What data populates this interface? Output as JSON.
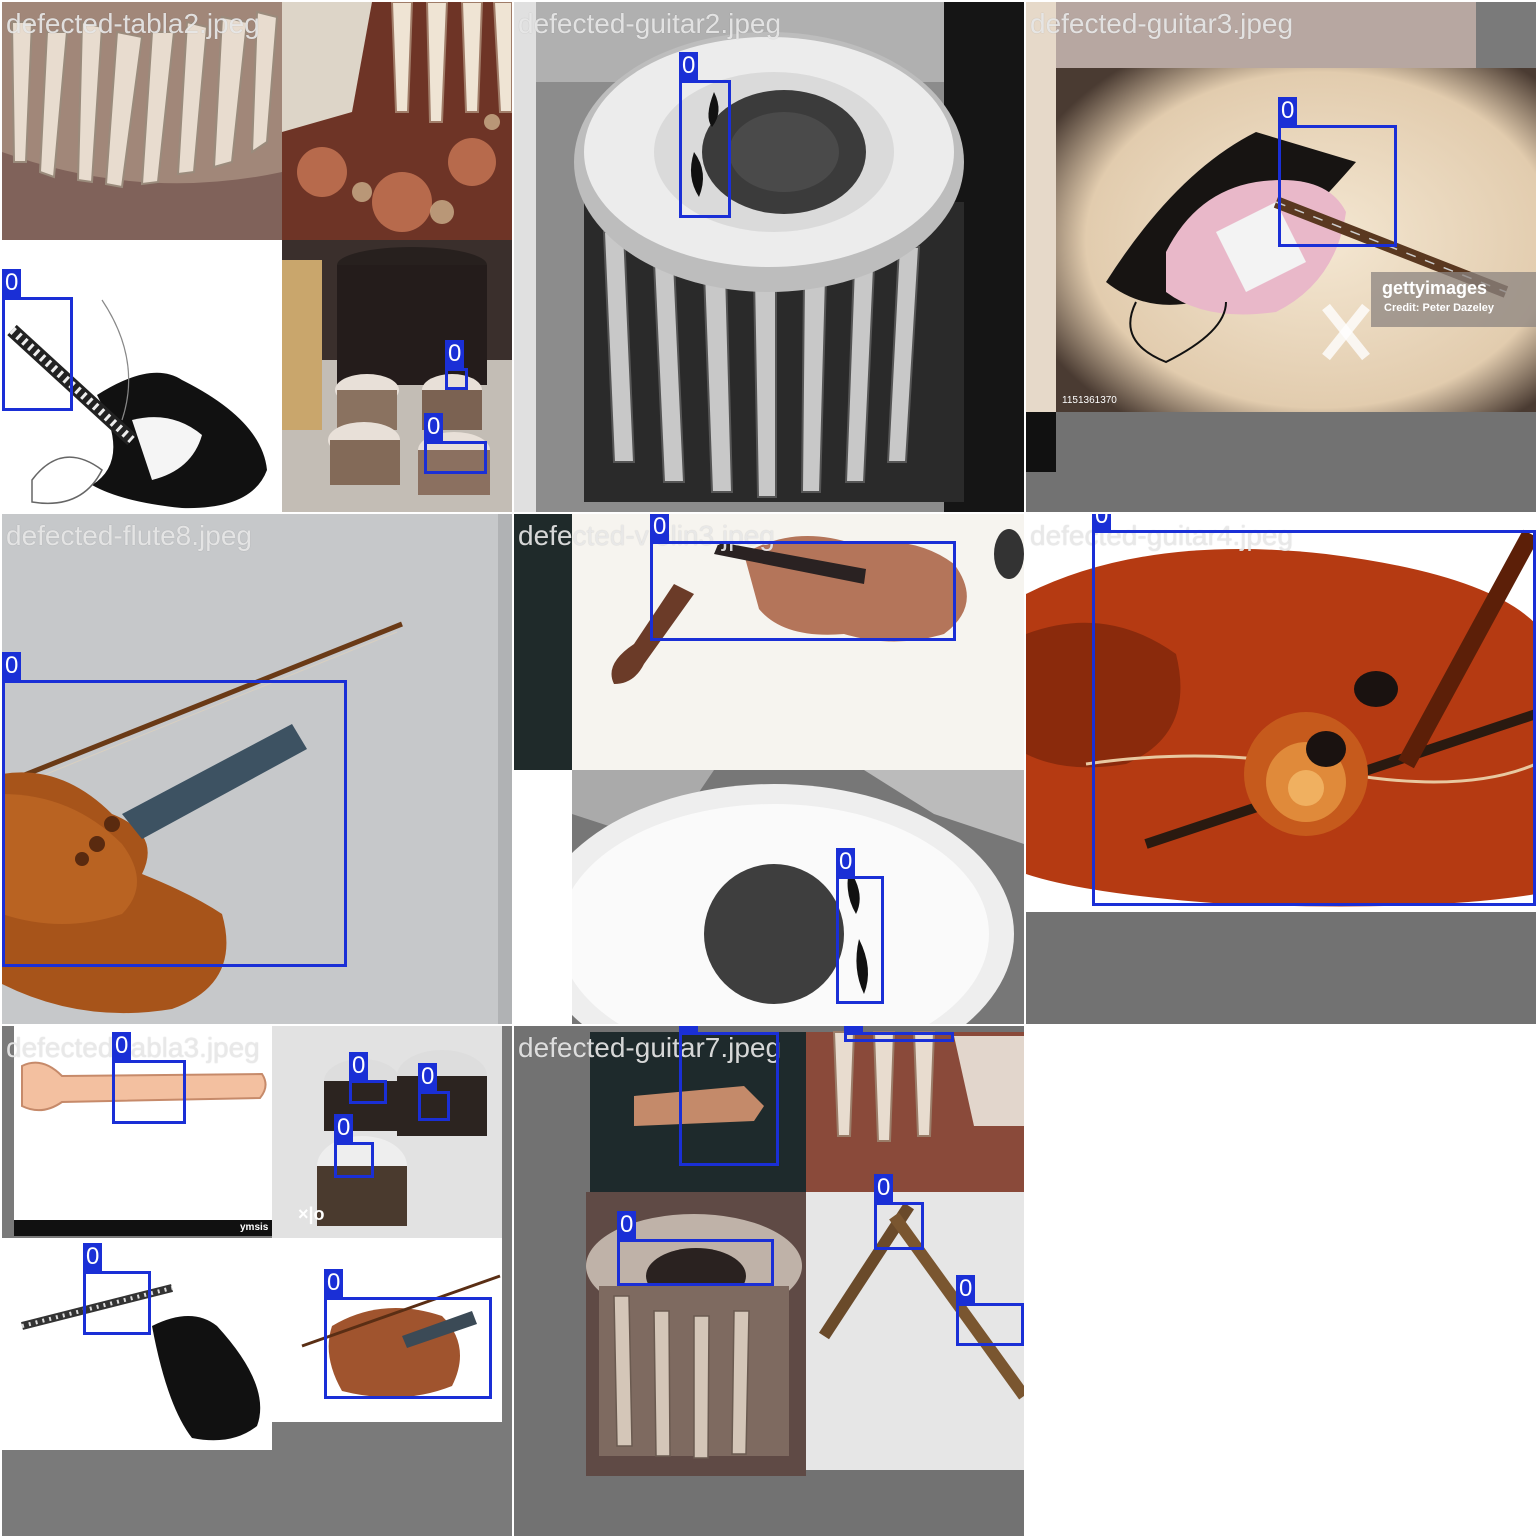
{
  "tiles": [
    {
      "filename": "defected-tabla2.jpeg"
    },
    {
      "filename": "defected-guitar2.jpeg"
    },
    {
      "filename": "defected-guitar3.jpeg"
    },
    {
      "filename": "defected-flute8.jpeg"
    },
    {
      "filename": "defected-violin3.jpeg"
    },
    {
      "filename": "defected-guitar4.jpeg"
    },
    {
      "filename": "defected-tabla3.jpeg"
    },
    {
      "filename": "defected-guitar7.jpeg"
    }
  ],
  "class_label": "0",
  "watermarks": {
    "getty": "gettyimages",
    "credit": "Credit: Peter Dazeley",
    "getty_id": "1151361370",
    "ymsis": "ymsis",
    "xlo": "×|o"
  },
  "colors": {
    "box": "#1a2fd6",
    "background": "#727272",
    "filename_text": "#ebebeb"
  }
}
